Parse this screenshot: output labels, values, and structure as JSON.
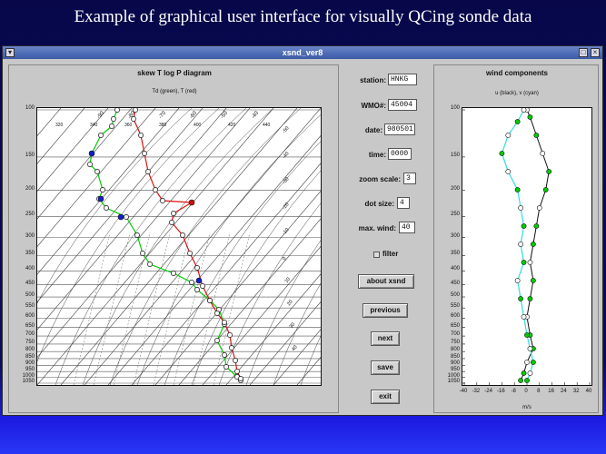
{
  "slide": {
    "title": "Example of graphical user interface for visually QCing sonde data"
  },
  "window": {
    "title": "xsnd_ver8",
    "menu_icon": "chevron-down-icon",
    "maximize_icon": "square-icon",
    "close_icon": "x-icon"
  },
  "skewt": {
    "title": "skew T log P diagram",
    "subtitle": "Td (green), T (red)",
    "pressure_labels": [
      "100",
      "150",
      "200",
      "250",
      "300",
      "350",
      "400",
      "450",
      "500",
      "550",
      "600",
      "650",
      "700",
      "750",
      "800",
      "850",
      "900",
      "950",
      "1000",
      "1050"
    ],
    "top_temp_labels": [
      "-90",
      "-80",
      "-70",
      "-60",
      "-50",
      "-40"
    ],
    "theta_labels": [
      "320",
      "340",
      "360",
      "380",
      "400",
      "420",
      "440"
    ],
    "right_labels": [
      "-50",
      "-40",
      "-30",
      "-20",
      "-10",
      "0",
      "10",
      "20",
      "30",
      "40"
    ],
    "td_color": "#00cc00",
    "t_color": "#dd1111",
    "flag_color": "#1020cc"
  },
  "controls": {
    "station_label": "station:",
    "station_value": "HNKG",
    "wmo_label": "WMO#:",
    "wmo_value": "45004",
    "date_label": "date:",
    "date_value": "980501",
    "time_label": "time:",
    "time_value": "0000",
    "zoom_label": "zoom scale:",
    "zoom_value": "3",
    "dot_label": "dot size:",
    "dot_value": "4",
    "maxwind_label": "max. wind:",
    "maxwind_value": "40",
    "filter_label": "filter",
    "about_button": "about xsnd",
    "previous_button": "previous",
    "next_button": "next",
    "save_button": "save",
    "exit_button": "exit"
  },
  "wind": {
    "title": "wind components",
    "subtitle": "u (black), v (cyan)",
    "pressure_labels": [
      "100",
      "150",
      "200",
      "250",
      "300",
      "350",
      "400",
      "450",
      "500",
      "550",
      "600",
      "650",
      "700",
      "750",
      "800",
      "850",
      "900",
      "950",
      "1000",
      "1050"
    ],
    "x_ticks": [
      "-40",
      "-32",
      "-24",
      "-16",
      "-8",
      "0",
      "8",
      "16",
      "24",
      "32",
      "40"
    ],
    "x_unit": "m/s",
    "u_color": "#111111",
    "v_color": "#33dddd",
    "marker_color": "#00cc00"
  }
}
